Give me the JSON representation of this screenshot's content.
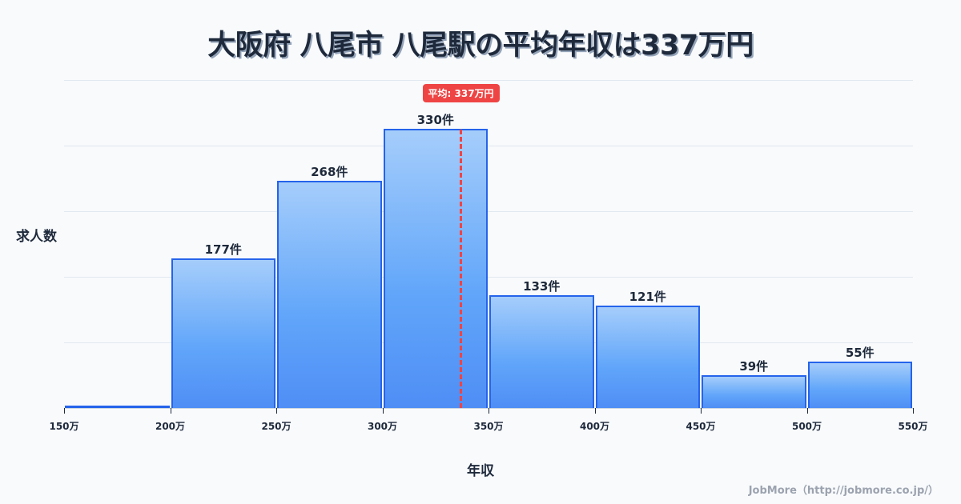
{
  "title": "大阪府 八尾市 八尾駅の平均年収は337万円",
  "ylabel": "求人数",
  "xlabel": "年収",
  "mean_badge": "平均: 337万円",
  "credit": "JobMore（http://jobmore.co.jp/）",
  "colors": {
    "bar_border": "#2563eb",
    "bar_top": "#a5cdfb",
    "bar_bottom": "#4f8ef5",
    "mean_line": "#ef4444",
    "background": "#f8fafc",
    "text": "#1e293b",
    "grid": "#e2e8f0"
  },
  "chart_data": {
    "type": "bar",
    "title": "大阪府 八尾市 八尾駅の平均年収は337万円",
    "xlabel": "年収",
    "ylabel": "求人数",
    "bin_edges": [
      150,
      200,
      250,
      300,
      350,
      400,
      450,
      500,
      550
    ],
    "tick_labels": [
      "150万",
      "200万",
      "250万",
      "300万",
      "350万",
      "400万",
      "450万",
      "500万",
      "550万"
    ],
    "categories": [
      "150-200万",
      "200-250万",
      "250-300万",
      "300-350万",
      "350-400万",
      "400-450万",
      "450-500万",
      "500-550万"
    ],
    "values": [
      3,
      177,
      268,
      330,
      133,
      121,
      39,
      55
    ],
    "value_labels": [
      "",
      "177件",
      "268件",
      "330件",
      "133件",
      "121件",
      "39件",
      "55件"
    ],
    "mean": 337,
    "mean_label": "平均: 337万円",
    "xlim": [
      150,
      550
    ],
    "ylim": [
      0,
      387.5
    ],
    "grid": true,
    "gridline_count": 5,
    "legend": "none"
  }
}
